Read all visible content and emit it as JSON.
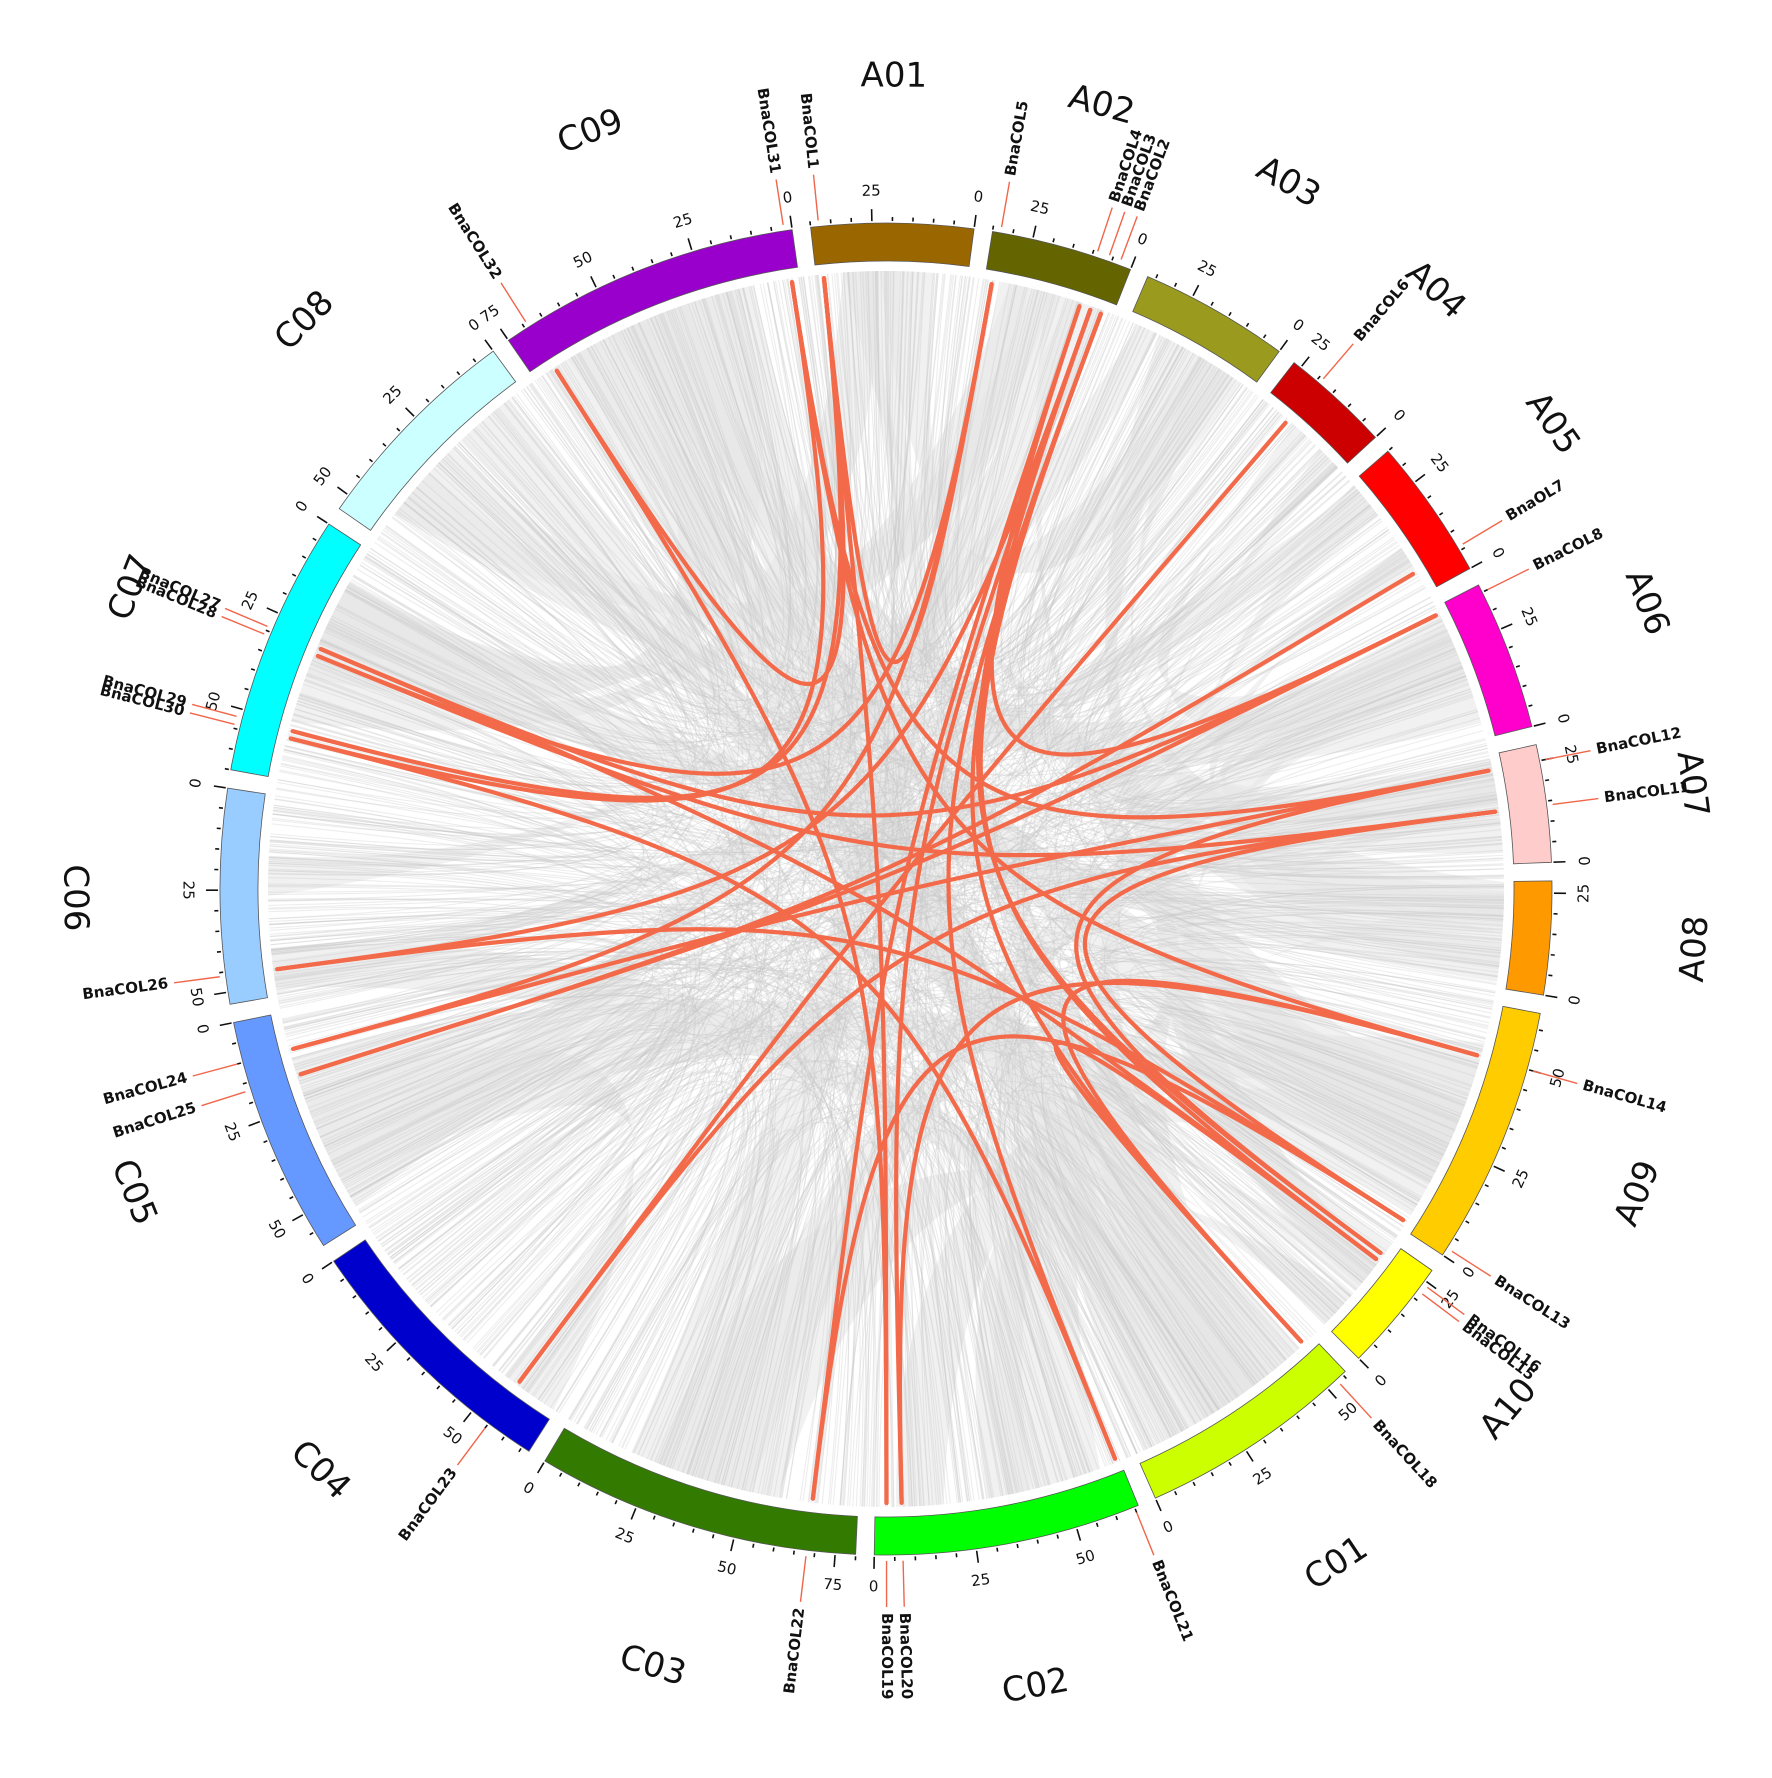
{
  "chromosomes": [
    {
      "name": "A01",
      "length": 40,
      "color": "#9a6600"
    },
    {
      "name": "A02",
      "length": 35,
      "color": "#646400"
    },
    {
      "name": "A03",
      "length": 37,
      "color": "#9a9a1e"
    },
    {
      "name": "A04",
      "length": 27,
      "color": "#cc0000"
    },
    {
      "name": "A05",
      "length": 35,
      "color": "#ff0000"
    },
    {
      "name": "A06",
      "length": 37,
      "color": "#ff00cc"
    },
    {
      "name": "A07",
      "length": 29,
      "color": "#ffcccc"
    },
    {
      "name": "A08",
      "length": 28,
      "color": "#ff9900"
    },
    {
      "name": "A09",
      "length": 64,
      "color": "#ffcc00"
    },
    {
      "name": "A10",
      "length": 28,
      "color": "#ffff00"
    },
    {
      "name": "C01",
      "length": 56,
      "color": "#ccff00"
    },
    {
      "name": "C02",
      "length": 66,
      "color": "#00ff00"
    },
    {
      "name": "C03",
      "length": 80,
      "color": "#337a00"
    },
    {
      "name": "C04",
      "length": 67,
      "color": "#0000cc"
    },
    {
      "name": "C05",
      "length": 59,
      "color": "#6699ff"
    },
    {
      "name": "C06",
      "length": 53,
      "color": "#99ccff"
    },
    {
      "name": "C07",
      "length": 65,
      "color": "#00ffff"
    },
    {
      "name": "C08",
      "length": 54,
      "color": "#ccffff"
    },
    {
      "name": "C09",
      "length": 75,
      "color": "#9900cc"
    }
  ],
  "tick_step": 5,
  "label_step": 25,
  "genes": [
    {
      "name": "BnaCOL1",
      "chr": "A01",
      "pos": 38
    },
    {
      "name": "BnaCOL2",
      "chr": "A02",
      "pos": 3
    },
    {
      "name": "BnaCOL3",
      "chr": "A02",
      "pos": 6
    },
    {
      "name": "BnaCOL4",
      "chr": "A02",
      "pos": 9
    },
    {
      "name": "BnaCOL5",
      "chr": "A02",
      "pos": 33
    },
    {
      "name": "BnaCOL6",
      "chr": "A04",
      "pos": 19
    },
    {
      "name": "BnaOL7",
      "chr": "A05",
      "pos": 6
    },
    {
      "name": "BnaCOL8",
      "chr": "A06",
      "pos": 35
    },
    {
      "name": "BnaCOL11",
      "chr": "A07",
      "pos": 14
    },
    {
      "name": "BnaCOL12",
      "chr": "A07",
      "pos": 25
    },
    {
      "name": "BnaCOL13",
      "chr": "A09",
      "pos": 2
    },
    {
      "name": "BnaCOL14",
      "chr": "A09",
      "pos": 50
    },
    {
      "name": "BnaCOL15",
      "chr": "A10",
      "pos": 22
    },
    {
      "name": "BnaCOL16",
      "chr": "A10",
      "pos": 24
    },
    {
      "name": "BnaCOL18",
      "chr": "C01",
      "pos": 53
    },
    {
      "name": "BnaCOL19",
      "chr": "C02",
      "pos": 3
    },
    {
      "name": "BnaCOL20",
      "chr": "C02",
      "pos": 7
    },
    {
      "name": "BnaCOL21",
      "chr": "C02",
      "pos": 65
    },
    {
      "name": "BnaCOL22",
      "chr": "C03",
      "pos": 68
    },
    {
      "name": "BnaCOL23",
      "chr": "C04",
      "pos": 55
    },
    {
      "name": "BnaCOL24",
      "chr": "C05",
      "pos": 10
    },
    {
      "name": "BnaCOL25",
      "chr": "C05",
      "pos": 17
    },
    {
      "name": "BnaCOL26",
      "chr": "C06",
      "pos": 46
    },
    {
      "name": "BnaCOL27",
      "chr": "C07",
      "pos": 29
    },
    {
      "name": "BnaCOL28",
      "chr": "C07",
      "pos": 31
    },
    {
      "name": "BnaCOL29",
      "chr": "C07",
      "pos": 52
    },
    {
      "name": "BnaCOL30",
      "chr": "C07",
      "pos": 54
    },
    {
      "name": "BnaCOL31",
      "chr": "C09",
      "pos": 2
    },
    {
      "name": "BnaCOL32",
      "chr": "C09",
      "pos": 69
    }
  ],
  "duplication_links": [
    [
      "BnaCOL1",
      "BnaCOL5"
    ],
    [
      "BnaCOL1",
      "BnaCOL19"
    ],
    [
      "BnaCOL1",
      "BnaCOL29"
    ],
    [
      "BnaCOL2",
      "BnaCOL18"
    ],
    [
      "BnaCOL2",
      "BnaCOL15"
    ],
    [
      "BnaCOL2",
      "BnaCOL21"
    ],
    [
      "BnaCOL3",
      "BnaCOL16"
    ],
    [
      "BnaCOL3",
      "BnaCOL20"
    ],
    [
      "BnaCOL3",
      "BnaCOL26"
    ],
    [
      "BnaCOL4",
      "BnaCOL8"
    ],
    [
      "BnaCOL4",
      "BnaCOL22"
    ],
    [
      "BnaCOL5",
      "BnaCOL24"
    ],
    [
      "BnaCOL32",
      "BnaCOL19"
    ],
    [
      "BnaCOL32",
      "BnaCOL1"
    ],
    [
      "BnaCOL31",
      "BnaCOL30"
    ],
    [
      "BnaCOL31",
      "BnaCOL14"
    ],
    [
      "BnaCOL31",
      "BnaCOL12"
    ],
    [
      "BnaCOL6",
      "BnaCOL23"
    ],
    [
      "BnaOL7",
      "BnaCOL25"
    ],
    [
      "BnaCOL8",
      "BnaCOL27"
    ],
    [
      "BnaCOL11",
      "BnaCOL28"
    ],
    [
      "BnaCOL11",
      "BnaCOL13"
    ],
    [
      "BnaCOL12",
      "BnaCOL24"
    ],
    [
      "BnaCOL12",
      "BnaCOL16"
    ],
    [
      "BnaCOL13",
      "BnaCOL26"
    ],
    [
      "BnaCOL13",
      "BnaCOL22"
    ],
    [
      "BnaCOL14",
      "BnaCOL18"
    ],
    [
      "BnaCOL14",
      "BnaCOL20"
    ],
    [
      "BnaCOL15",
      "BnaCOL27"
    ],
    [
      "BnaCOL18",
      "BnaCOL15"
    ],
    [
      "BnaCOL21",
      "BnaCOL30"
    ],
    [
      "BnaCOL23",
      "BnaCOL11"
    ],
    [
      "BnaCOL25",
      "BnaCOL8"
    ],
    [
      "BnaCOL28",
      "BnaCOL5"
    ]
  ],
  "colors": {
    "duplication_link": "#f26a4a",
    "background_link": "#c8c8c8"
  }
}
